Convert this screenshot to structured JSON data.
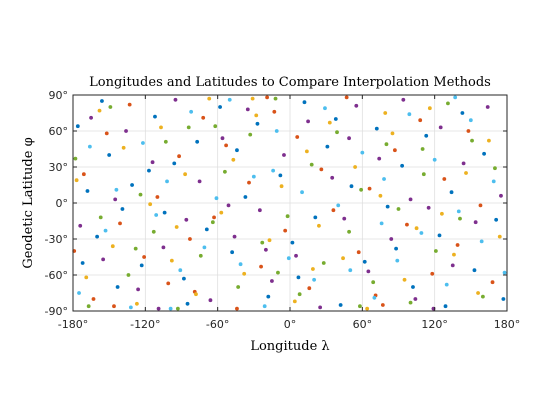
{
  "chart_data": {
    "type": "scatter",
    "title": "Longitudes and Latitudes to Compare Interpolation Methods",
    "xlabel": "Longitude λ",
    "ylabel": "Geodetic Latitude φ",
    "xlim": [
      -180,
      180
    ],
    "ylim": [
      -90,
      90
    ],
    "grid": true,
    "legend": "none",
    "x_ticks": [
      -180,
      -120,
      -60,
      0,
      60,
      120,
      180
    ],
    "y_ticks": [
      -90,
      -60,
      -30,
      0,
      30,
      60,
      90
    ],
    "x_tick_labels": [
      "-180°",
      "-120°",
      "-60°",
      "0°",
      "60°",
      "120°",
      "180°"
    ],
    "y_tick_labels": [
      "-90°",
      "-60°",
      "-30°",
      "0°",
      "30°",
      "60°",
      "90°"
    ],
    "series": [
      {
        "color": "#0072bd",
        "points": [
          [
            -176,
            64
          ],
          [
            -168,
            10
          ],
          [
            -160,
            -28
          ],
          [
            -150,
            40
          ],
          [
            -143,
            -70
          ],
          [
            -131,
            15
          ],
          [
            -123,
            -52
          ],
          [
            -112,
            72
          ],
          [
            -104,
            -8
          ],
          [
            -96,
            33
          ],
          [
            -88,
            -63
          ],
          [
            -77,
            51
          ],
          [
            -69,
            -22
          ],
          [
            -58,
            80
          ],
          [
            -48,
            -41
          ],
          [
            -37,
            5
          ],
          [
            -27,
            66
          ],
          [
            -18,
            -78
          ],
          [
            -8,
            23
          ],
          [
            2,
            -33
          ],
          [
            12,
            84
          ],
          [
            21,
            -12
          ],
          [
            31,
            47
          ],
          [
            42,
            -85
          ],
          [
            51,
            14
          ],
          [
            62,
            -49
          ],
          [
            72,
            62
          ],
          [
            81,
            -3
          ],
          [
            93,
            31
          ],
          [
            102,
            -70
          ],
          [
            113,
            56
          ],
          [
            124,
            -27
          ],
          [
            134,
            9
          ],
          [
            143,
            75
          ],
          [
            153,
            -56
          ],
          [
            161,
            41
          ],
          [
            171,
            -14
          ],
          [
            177,
            -80
          ],
          [
            -172,
            -50
          ],
          [
            -156,
            85
          ],
          [
            -139,
            -5
          ],
          [
            -117,
            27
          ],
          [
            -85,
            -84
          ],
          [
            -44,
            44
          ],
          [
            7,
            -62
          ],
          [
            38,
            70
          ],
          [
            88,
            -38
          ],
          [
            129,
            -86
          ]
        ]
      },
      {
        "color": "#d95319",
        "points": [
          [
            -179,
            -40
          ],
          [
            -171,
            24
          ],
          [
            -163,
            -80
          ],
          [
            -152,
            58
          ],
          [
            -141,
            -17
          ],
          [
            -133,
            82
          ],
          [
            -121,
            -45
          ],
          [
            -110,
            5
          ],
          [
            -101,
            -67
          ],
          [
            -92,
            39
          ],
          [
            -83,
            -30
          ],
          [
            -72,
            71
          ],
          [
            -63,
            -12
          ],
          [
            -53,
            48
          ],
          [
            -44,
            -88
          ],
          [
            -34,
            17
          ],
          [
            -24,
            -53
          ],
          [
            -13,
            76
          ],
          [
            -4,
            -23
          ],
          [
            6,
            55
          ],
          [
            16,
            -71
          ],
          [
            26,
            28
          ],
          [
            36,
            -6
          ],
          [
            47,
            88
          ],
          [
            57,
            -41
          ],
          [
            66,
            12
          ],
          [
            77,
            -85
          ],
          [
            87,
            44
          ],
          [
            97,
            -18
          ],
          [
            108,
            69
          ],
          [
            118,
            -59
          ],
          [
            128,
            20
          ],
          [
            139,
            -35
          ],
          [
            148,
            60
          ],
          [
            158,
            -2
          ],
          [
            168,
            -66
          ],
          [
            -146,
            -86
          ],
          [
            -79,
            -74
          ],
          [
            -19,
            88
          ],
          [
            71,
            -77
          ]
        ]
      },
      {
        "color": "#edb120",
        "points": [
          [
            -177,
            19
          ],
          [
            -169,
            -62
          ],
          [
            -158,
            77
          ],
          [
            -147,
            -36
          ],
          [
            -138,
            46
          ],
          [
            -127,
            -84
          ],
          [
            -116,
            -1
          ],
          [
            -107,
            63
          ],
          [
            -98,
            -48
          ],
          [
            -87,
            24
          ],
          [
            -78,
            -76
          ],
          [
            -67,
            87
          ],
          [
            -57,
            -8
          ],
          [
            -47,
            36
          ],
          [
            -38,
            -59
          ],
          [
            -28,
            73
          ],
          [
            -17,
            -31
          ],
          [
            -7,
            14
          ],
          [
            4,
            -82
          ],
          [
            14,
            43
          ],
          [
            24,
            -19
          ],
          [
            33,
            67
          ],
          [
            44,
            -46
          ],
          [
            54,
            30
          ],
          [
            64,
            -88
          ],
          [
            75,
            6
          ],
          [
            85,
            58
          ],
          [
            95,
            -64
          ],
          [
            105,
            -21
          ],
          [
            116,
            79
          ],
          [
            126,
            -9
          ],
          [
            136,
            -43
          ],
          [
            146,
            25
          ],
          [
            156,
            -75
          ],
          [
            165,
            52
          ],
          [
            174,
            -28
          ],
          [
            -94,
            -20
          ],
          [
            -31,
            87
          ],
          [
            19,
            -55
          ],
          [
            79,
            75
          ]
        ]
      },
      {
        "color": "#7e2f8e",
        "points": [
          [
            -174,
            -19
          ],
          [
            -165,
            71
          ],
          [
            -155,
            -47
          ],
          [
            -145,
            3
          ],
          [
            -136,
            60
          ],
          [
            -126,
            -72
          ],
          [
            -114,
            34
          ],
          [
            -105,
            -37
          ],
          [
            -95,
            86
          ],
          [
            -86,
            -14
          ],
          [
            -75,
            18
          ],
          [
            -66,
            -81
          ],
          [
            -56,
            54
          ],
          [
            -46,
            -28
          ],
          [
            -35,
            78
          ],
          [
            -25,
            -6
          ],
          [
            -15,
            -65
          ],
          [
            -5,
            40
          ],
          [
            5,
            -44
          ],
          [
            15,
            68
          ],
          [
            25,
            -87
          ],
          [
            35,
            21
          ],
          [
            45,
            -13
          ],
          [
            55,
            81
          ],
          [
            65,
            -57
          ],
          [
            74,
            37
          ],
          [
            84,
            -30
          ],
          [
            94,
            86
          ],
          [
            104,
            -80
          ],
          [
            115,
            -4
          ],
          [
            125,
            63
          ],
          [
            135,
            -52
          ],
          [
            144,
            33
          ],
          [
            154,
            -16
          ],
          [
            164,
            80
          ],
          [
            175,
            6
          ],
          [
            -109,
            -88
          ],
          [
            -51,
            -2
          ],
          [
            49,
            54
          ],
          [
            119,
            -88
          ],
          [
            -20,
            -39
          ],
          [
            100,
            3
          ]
        ]
      },
      {
        "color": "#77ac30",
        "points": [
          [
            -178,
            37
          ],
          [
            -167,
            -86
          ],
          [
            -157,
            -12
          ],
          [
            -149,
            80
          ],
          [
            -134,
            -60
          ],
          [
            -124,
            7
          ],
          [
            -113,
            -24
          ],
          [
            -103,
            51
          ],
          [
            -93,
            -88
          ],
          [
            -84,
            63
          ],
          [
            -74,
            -44
          ],
          [
            -64,
            -16
          ],
          [
            -54,
            26
          ],
          [
            -43,
            -70
          ],
          [
            -33,
            57
          ],
          [
            -23,
            -33
          ],
          [
            -12,
            87
          ],
          [
            -2,
            -11
          ],
          [
            8,
            -76
          ],
          [
            18,
            32
          ],
          [
            28,
            -50
          ],
          [
            39,
            59
          ],
          [
            49,
            -24
          ],
          [
            59,
            11
          ],
          [
            69,
            -66
          ],
          [
            80,
            49
          ],
          [
            90,
            -5
          ],
          [
            100,
            -83
          ],
          [
            111,
            24
          ],
          [
            121,
            -40
          ],
          [
            131,
            83
          ],
          [
            141,
            -13
          ],
          [
            151,
            52
          ],
          [
            160,
            -78
          ],
          [
            170,
            29
          ],
          [
            -128,
            -38
          ],
          [
            -62,
            64
          ],
          [
            -10,
            -58
          ],
          [
            58,
            -86
          ],
          [
            110,
            45
          ]
        ]
      },
      {
        "color": "#4dbeee",
        "points": [
          [
            -175,
            -75
          ],
          [
            -166,
            47
          ],
          [
            -153,
            -23
          ],
          [
            -144,
            11
          ],
          [
            -132,
            -87
          ],
          [
            -122,
            50
          ],
          [
            -111,
            -10
          ],
          [
            -102,
            18
          ],
          [
            -91,
            -56
          ],
          [
            -82,
            76
          ],
          [
            -71,
            -37
          ],
          [
            -61,
            4
          ],
          [
            -50,
            86
          ],
          [
            -41,
            -51
          ],
          [
            -30,
            22
          ],
          [
            -21,
            -86
          ],
          [
            -11,
            60
          ],
          [
            -1,
            -46
          ],
          [
            10,
            9
          ],
          [
            20,
            -64
          ],
          [
            29,
            79
          ],
          [
            40,
            -2
          ],
          [
            50,
            -56
          ],
          [
            60,
            42
          ],
          [
            70,
            -79
          ],
          [
            78,
            20
          ],
          [
            89,
            -48
          ],
          [
            99,
            74
          ],
          [
            109,
            -25
          ],
          [
            120,
            36
          ],
          [
            130,
            -68
          ],
          [
            140,
            -7
          ],
          [
            150,
            69
          ],
          [
            159,
            -32
          ],
          [
            169,
            18
          ],
          [
            178,
            -58
          ],
          [
            -99,
            -88
          ],
          [
            -14,
            27
          ],
          [
            76,
            -17
          ],
          [
            137,
            88
          ]
        ]
      }
    ]
  }
}
